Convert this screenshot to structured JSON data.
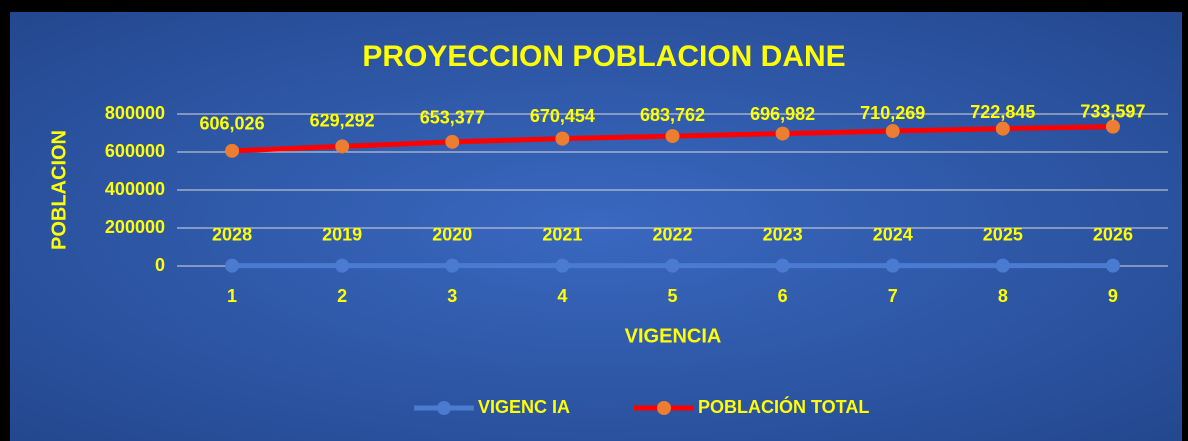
{
  "chart_data": {
    "type": "line",
    "title": "PROYECCION POBLACION DANE",
    "x_label": "VIGENCIA",
    "y_label": "POBLACION",
    "categories": [
      "1",
      "2",
      "3",
      "4",
      "5",
      "6",
      "7",
      "8",
      "9"
    ],
    "series": [
      {
        "name": "VIGENC IA",
        "color": "#4a7bd0",
        "marker_color": "#4a7bd0",
        "values": [
          2028,
          2019,
          2020,
          2021,
          2022,
          2023,
          2024,
          2025,
          2026
        ]
      },
      {
        "name": "POBLACIÓN TOTAL",
        "color": "#ff0000",
        "marker_color": "#ed7d31",
        "values": [
          606026,
          629292,
          653377,
          670454,
          683762,
          696982,
          710269,
          722845,
          733597
        ],
        "value_labels": [
          "606,026",
          "629,292",
          "653,377",
          "670,454",
          "683,762",
          "696,982",
          "710,269",
          "722,845",
          "733,597"
        ]
      }
    ],
    "ylim": [
      0,
      800000
    ],
    "yticks": [
      0,
      200000,
      400000,
      600000,
      800000
    ],
    "grid": true,
    "legend": "bottom"
  }
}
